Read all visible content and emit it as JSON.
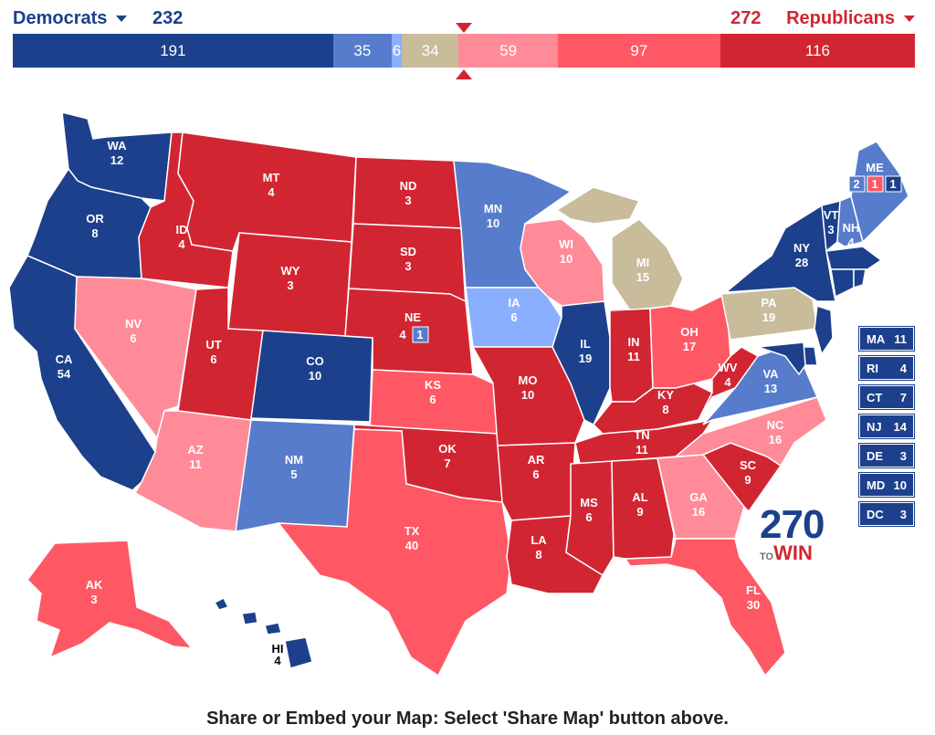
{
  "header": {
    "democrats": {
      "label": "Democrats",
      "total": "232"
    },
    "republicans": {
      "label": "Republicans",
      "total": "272"
    }
  },
  "bar": [
    {
      "label": "191",
      "value": 191,
      "color": "#1c408c"
    },
    {
      "label": "35",
      "value": 35,
      "color": "#577ccc"
    },
    {
      "label": "6",
      "value": 6,
      "color": "#8aafff"
    },
    {
      "label": "34",
      "value": 34,
      "color": "#c8bc9a"
    },
    {
      "label": "59",
      "value": 59,
      "color": "#ff8b98"
    },
    {
      "label": "97",
      "value": 97,
      "color": "#ff5865"
    },
    {
      "label": "116",
      "value": 116,
      "color": "#d22532"
    }
  ],
  "colors": {
    "solid_dem": "#1c408c",
    "likely_dem": "#577ccc",
    "lean_dem": "#8aafff",
    "tossup": "#c8bc9a",
    "lean_rep": "#ff8b98",
    "likely_rep": "#ff5865",
    "solid_rep": "#d22532"
  },
  "states": {
    "WA": {
      "abbr": "WA",
      "ev": "12"
    },
    "OR": {
      "abbr": "OR",
      "ev": "8"
    },
    "CA": {
      "abbr": "CA",
      "ev": "54"
    },
    "ID": {
      "abbr": "ID",
      "ev": "4"
    },
    "NV": {
      "abbr": "NV",
      "ev": "6"
    },
    "MT": {
      "abbr": "MT",
      "ev": "4"
    },
    "WY": {
      "abbr": "WY",
      "ev": "3"
    },
    "UT": {
      "abbr": "UT",
      "ev": "6"
    },
    "AZ": {
      "abbr": "AZ",
      "ev": "11"
    },
    "CO": {
      "abbr": "CO",
      "ev": "10"
    },
    "NM": {
      "abbr": "NM",
      "ev": "5"
    },
    "ND": {
      "abbr": "ND",
      "ev": "3"
    },
    "SD": {
      "abbr": "SD",
      "ev": "3"
    },
    "NE": {
      "abbr": "NE",
      "ev": "4",
      "district": "1"
    },
    "KS": {
      "abbr": "KS",
      "ev": "6"
    },
    "OK": {
      "abbr": "OK",
      "ev": "7"
    },
    "TX": {
      "abbr": "TX",
      "ev": "40"
    },
    "MN": {
      "abbr": "MN",
      "ev": "10"
    },
    "IA": {
      "abbr": "IA",
      "ev": "6"
    },
    "MO": {
      "abbr": "MO",
      "ev": "10"
    },
    "AR": {
      "abbr": "AR",
      "ev": "6"
    },
    "LA": {
      "abbr": "LA",
      "ev": "8"
    },
    "WI": {
      "abbr": "WI",
      "ev": "10"
    },
    "IL": {
      "abbr": "IL",
      "ev": "19"
    },
    "MI": {
      "abbr": "MI",
      "ev": "15"
    },
    "IN": {
      "abbr": "IN",
      "ev": "11"
    },
    "OH": {
      "abbr": "OH",
      "ev": "17"
    },
    "KY": {
      "abbr": "KY",
      "ev": "8"
    },
    "TN": {
      "abbr": "TN",
      "ev": "11"
    },
    "MS": {
      "abbr": "MS",
      "ev": "6"
    },
    "AL": {
      "abbr": "AL",
      "ev": "9"
    },
    "GA": {
      "abbr": "GA",
      "ev": "16"
    },
    "FL": {
      "abbr": "FL",
      "ev": "30"
    },
    "SC": {
      "abbr": "SC",
      "ev": "9"
    },
    "NC": {
      "abbr": "NC",
      "ev": "16"
    },
    "VA": {
      "abbr": "VA",
      "ev": "13"
    },
    "WV": {
      "abbr": "WV",
      "ev": "4"
    },
    "PA": {
      "abbr": "PA",
      "ev": "19"
    },
    "NY": {
      "abbr": "NY",
      "ev": "28"
    },
    "VT": {
      "abbr": "VT",
      "ev": "3"
    },
    "NH": {
      "abbr": "NH",
      "ev": "4"
    },
    "ME": {
      "abbr": "ME",
      "d1": "2",
      "d2": "1",
      "d3": "1"
    },
    "AK": {
      "abbr": "AK",
      "ev": "3"
    },
    "HI": {
      "abbr": "HI",
      "ev": "4"
    }
  },
  "small_states": [
    {
      "abbr": "MA",
      "ev": "11"
    },
    {
      "abbr": "RI",
      "ev": "4"
    },
    {
      "abbr": "CT",
      "ev": "7"
    },
    {
      "abbr": "NJ",
      "ev": "14"
    },
    {
      "abbr": "DE",
      "ev": "3"
    },
    {
      "abbr": "MD",
      "ev": "10"
    },
    {
      "abbr": "DC",
      "ev": "3"
    }
  ],
  "logo": {
    "number": "270",
    "to": "TO",
    "win": "WIN"
  },
  "footer": "Share or Embed your Map: Select 'Share Map' button above."
}
